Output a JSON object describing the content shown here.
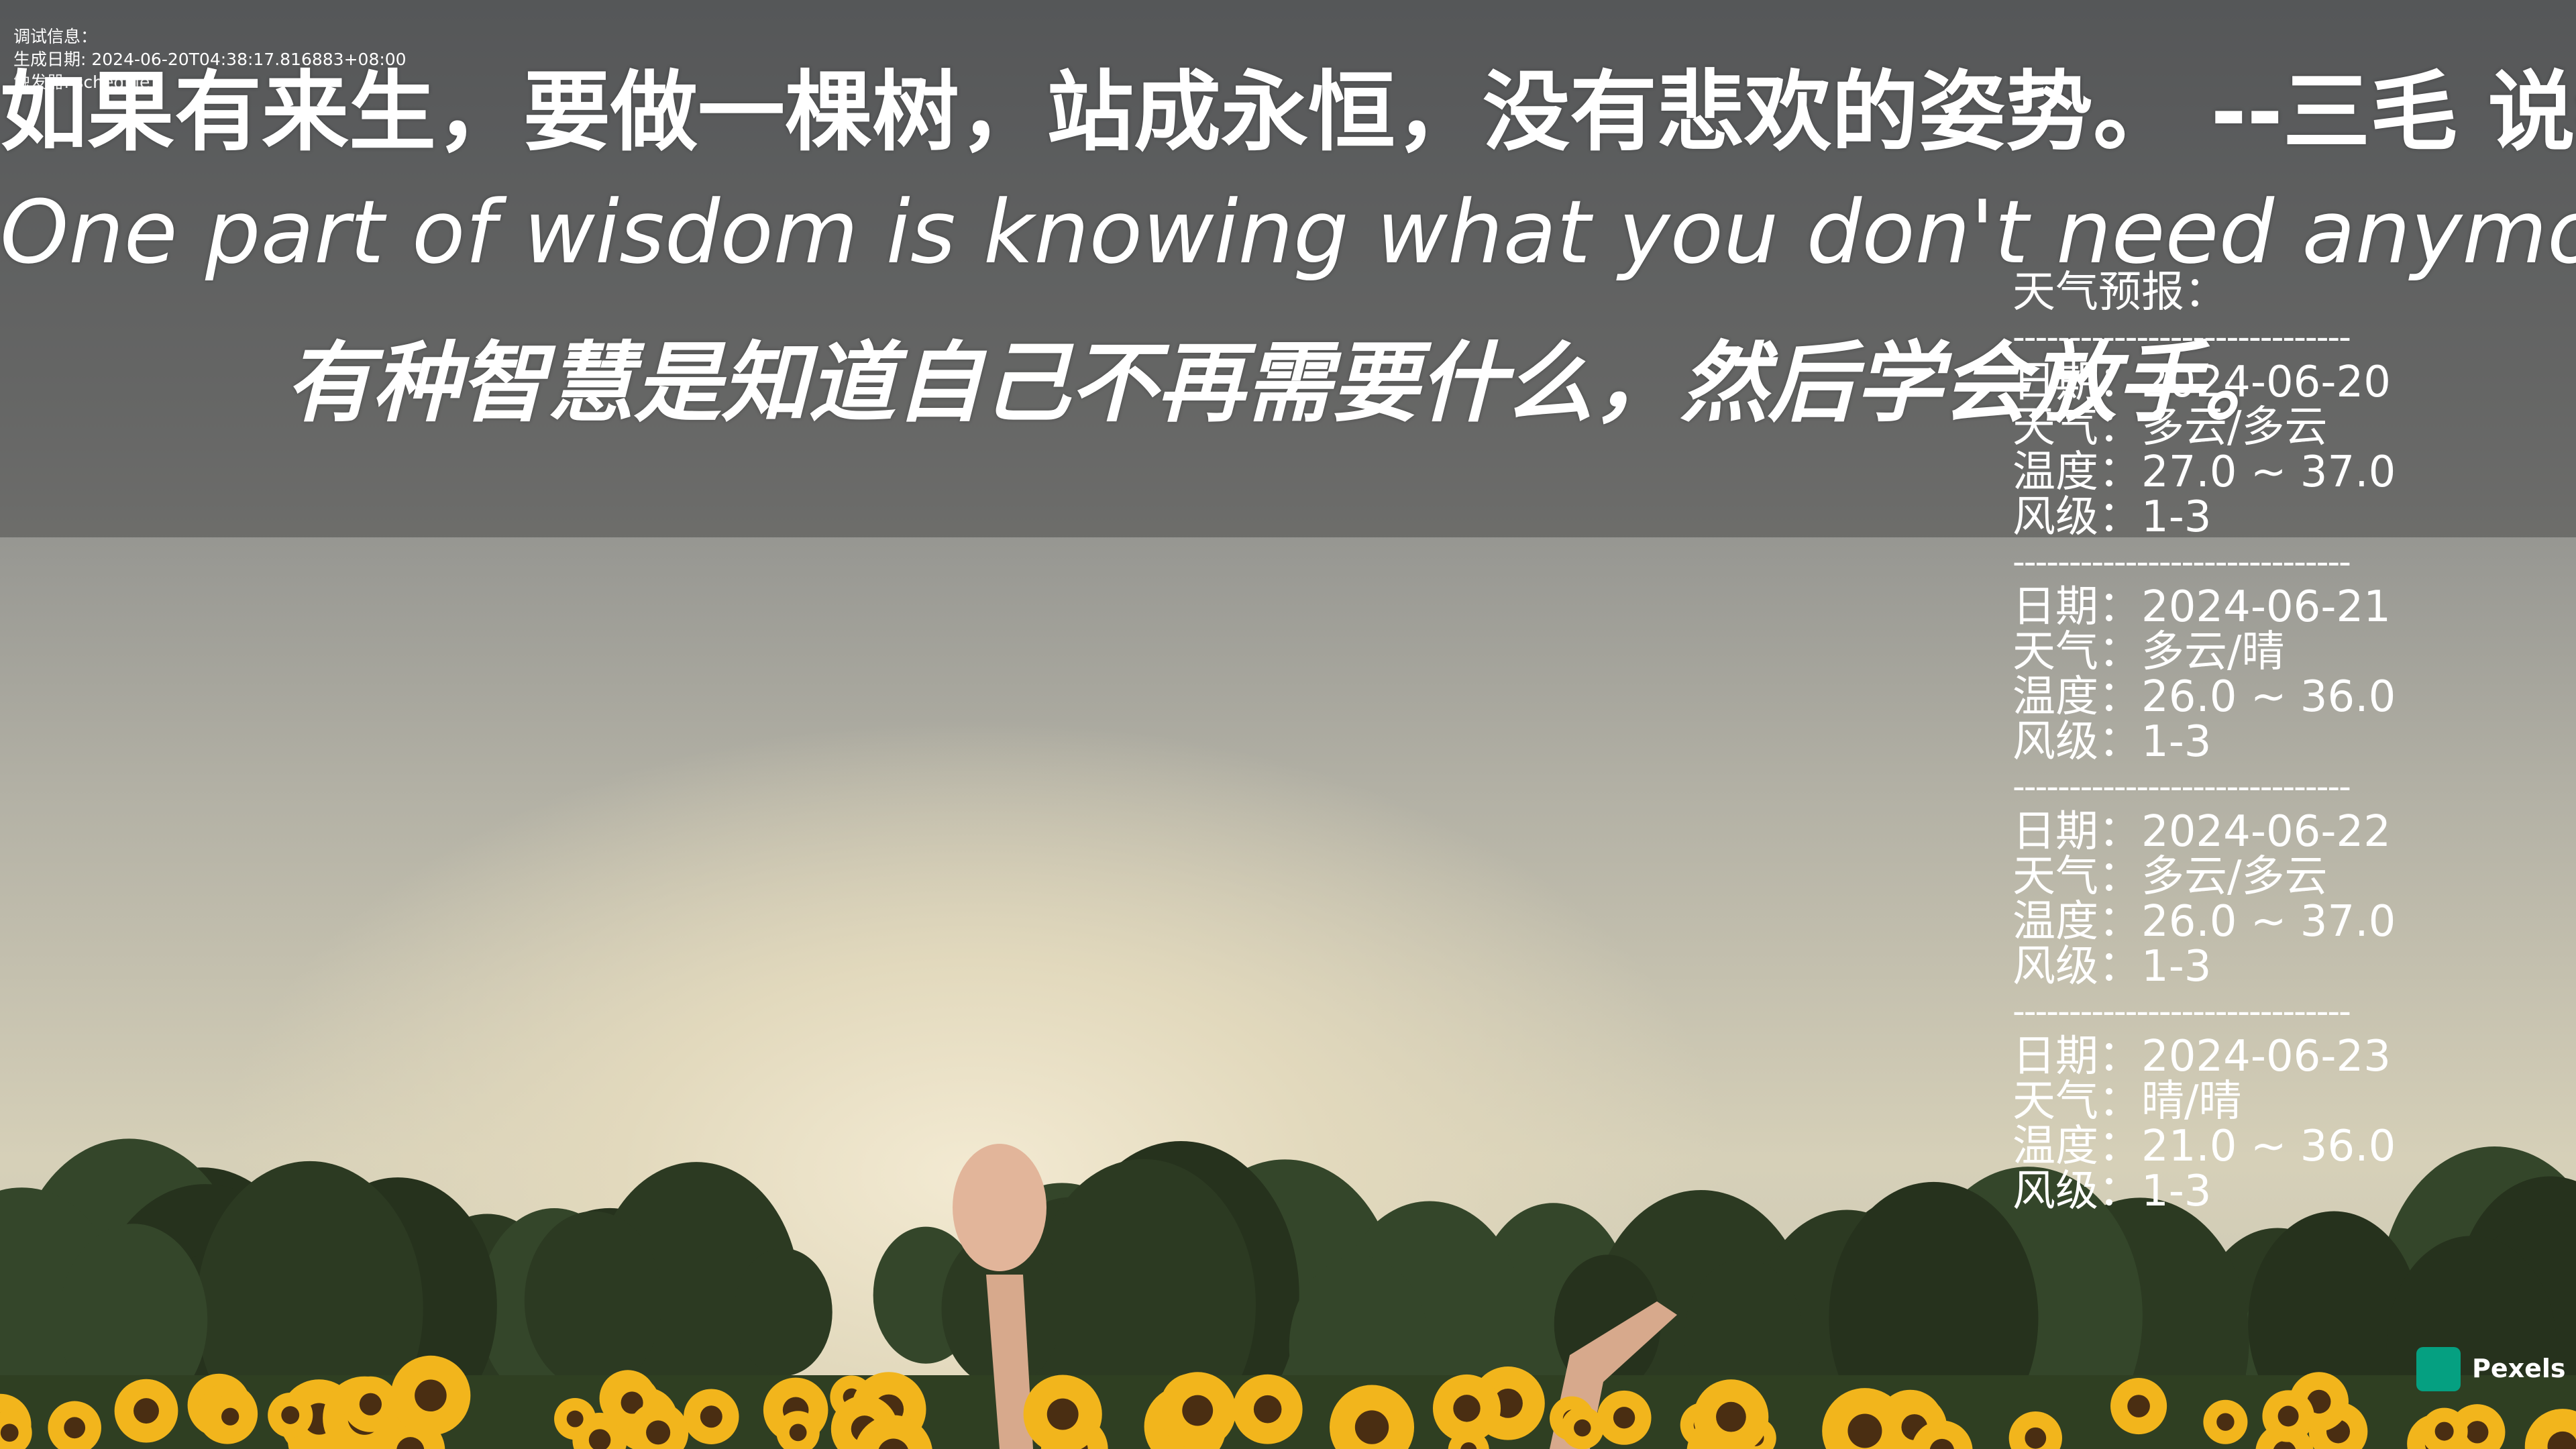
{
  "debug": {
    "title": "调试信息：",
    "lines": [
      "生成日期: 2024-06-20T04:38:17.816883+08:00",
      "触发器: schedule"
    ]
  },
  "quote": {
    "lines": [
      "如果有来生，要做一棵树，站成永恒，没有悲欢的姿势。  --三毛 说给自己听",
      "One part of wisdom is knowing what you don't need anymore and letting it go.",
      "有种智慧是知道自己不再需要什么，然后学会放手。"
    ]
  },
  "weather": {
    "title": "天气预报：",
    "separator": "------------------------------",
    "days": [
      {
        "date": "日期：2024-06-20",
        "weather": "天气：多云/多云",
        "temperature": "温度：27.0 ~ 37.0",
        "wind": "风级：1-3"
      },
      {
        "date": "日期：2024-06-21",
        "weather": "天气：多云/晴",
        "temperature": "温度：26.0 ~ 36.0",
        "wind": "风级：1-3"
      },
      {
        "date": "日期：2024-06-22",
        "weather": "天气：多云/多云",
        "temperature": "温度：26.0 ~ 37.0",
        "wind": "风级：1-3"
      },
      {
        "date": "日期：2024-06-23",
        "weather": "天气：晴/晴",
        "temperature": "温度：21.0 ~ 36.0",
        "wind": "风级：1-3"
      }
    ]
  },
  "watermark": "Pexels"
}
